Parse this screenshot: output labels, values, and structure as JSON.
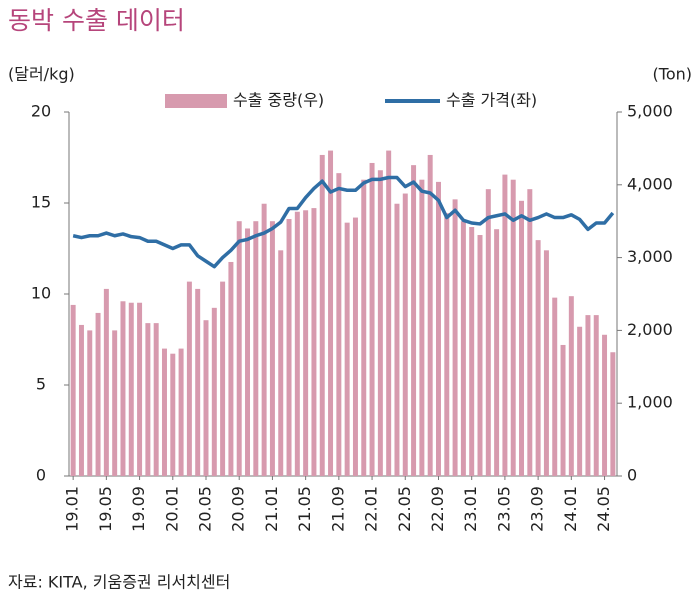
{
  "chart_data": {
    "type": "combo",
    "title": "동박 수출 데이터",
    "y_label": "(달러/kg)",
    "y2_label": "(Ton)",
    "source": "자료: KITA, 키움증권 리서치센터",
    "categories": [
      "19.01",
      null,
      null,
      null,
      "19.05",
      null,
      null,
      null,
      "19.09",
      null,
      null,
      null,
      "20.01",
      null,
      null,
      null,
      "20.05",
      null,
      null,
      null,
      "20.09",
      null,
      null,
      null,
      "21.01",
      null,
      null,
      null,
      "21.05",
      null,
      null,
      null,
      "21.09",
      null,
      null,
      null,
      "22.01",
      null,
      null,
      null,
      "22.05",
      null,
      null,
      null,
      "22.09",
      null,
      null,
      null,
      "23.01",
      null,
      null,
      null,
      "23.05",
      null,
      null,
      null,
      "23.09",
      null,
      null,
      null,
      "24.01",
      null,
      null,
      null,
      "24.05",
      null
    ],
    "series": [
      {
        "name": "수출 중량(우)",
        "type": "bar",
        "axis": "y2",
        "color": "#d79aae",
        "values": [
          2350,
          2075,
          2000,
          2240,
          2570,
          2000,
          2400,
          2380,
          2380,
          2100,
          2100,
          1750,
          1680,
          1750,
          2670,
          2570,
          2140,
          2310,
          2670,
          2940,
          3500,
          3400,
          3500,
          3740,
          3500,
          3100,
          3530,
          3630,
          3650,
          3680,
          4410,
          4470,
          4160,
          3480,
          3550,
          4070,
          4300,
          4200,
          4470,
          3740,
          3880,
          4270,
          4070,
          4410,
          4040,
          3610,
          3800,
          3500,
          3420,
          3310,
          3940,
          3390,
          4140,
          4070,
          3780,
          3940,
          3240,
          3100,
          2450,
          1800,
          2470,
          2050,
          2210,
          2210,
          1940,
          1700
        ]
      },
      {
        "name": "수출 가격(좌)",
        "type": "line",
        "axis": "y",
        "color": "#2f6ea5",
        "values": [
          13.2,
          13.1,
          13.2,
          13.2,
          13.35,
          13.2,
          13.3,
          13.15,
          13.1,
          12.9,
          12.9,
          12.7,
          12.5,
          12.7,
          12.7,
          12.1,
          11.8,
          11.5,
          12.0,
          12.4,
          12.9,
          13.0,
          13.2,
          13.35,
          13.6,
          13.95,
          14.7,
          14.7,
          15.3,
          15.8,
          16.2,
          15.6,
          15.8,
          15.7,
          15.7,
          16.1,
          16.3,
          16.3,
          16.4,
          16.4,
          15.9,
          16.15,
          15.65,
          15.55,
          15.15,
          14.2,
          14.6,
          14.05,
          13.9,
          13.85,
          14.2,
          14.3,
          14.4,
          14.05,
          14.3,
          14.05,
          14.2,
          14.4,
          14.2,
          14.2,
          14.35,
          14.1,
          13.55,
          13.9,
          13.9,
          14.45
        ]
      }
    ],
    "ylim": [
      0,
      20
    ],
    "yticks": [
      0,
      5,
      10,
      15,
      20
    ],
    "y2lim": [
      0,
      5000
    ],
    "y2ticks": [
      0,
      {
        "value": 1000,
        "label": "1,000"
      },
      {
        "value": 2000,
        "label": "2,000"
      },
      {
        "value": 3000,
        "label": "3,000"
      },
      {
        "value": 4000,
        "label": "4,000"
      },
      {
        "value": 5000,
        "label": "5,000"
      }
    ],
    "legend": "top"
  }
}
